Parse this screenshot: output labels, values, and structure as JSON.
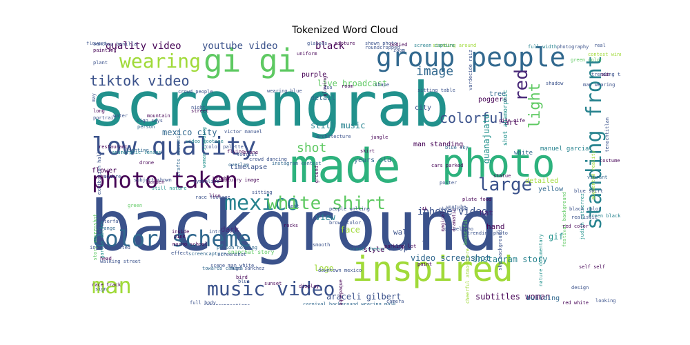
{
  "title": "Tokenized Word Cloud",
  "palette": [
    "#440154",
    "#3b528b",
    "#21918c",
    "#2db27d",
    "#5ec962",
    "#a0da39",
    "#31688e",
    "#26828e",
    "#482878",
    "#1f9e89"
  ],
  "words": [
    {
      "text": "background",
      "size": 100,
      "color": "#3b528b"
    },
    {
      "text": "screengrab",
      "size": 88,
      "color": "#21918c"
    },
    {
      "text": "made",
      "size": 68,
      "color": "#2db27d"
    },
    {
      "text": "photo",
      "size": 56,
      "color": "#2db27d"
    },
    {
      "text": "inspired",
      "size": 50,
      "color": "#a0da39"
    },
    {
      "text": "gi gi",
      "size": 46,
      "color": "#5ec962"
    },
    {
      "text": "group people",
      "size": 38,
      "color": "#31688e"
    },
    {
      "text": "low quality",
      "size": 36,
      "color": "#3b528b"
    },
    {
      "text": "photo taken",
      "size": 32,
      "color": "#440154"
    },
    {
      "text": "color scheme",
      "size": 32,
      "color": "#31688e"
    },
    {
      "text": "man",
      "size": 32,
      "color": "#a0da39"
    },
    {
      "text": "music video",
      "size": 28,
      "color": "#3b528b"
    },
    {
      "text": "standing front",
      "size": 30,
      "color": "#26828e"
    },
    {
      "text": "mexico",
      "size": 30,
      "color": "#26828e"
    },
    {
      "text": "white shirt",
      "size": 26,
      "color": "#5ec962"
    },
    {
      "text": "wearing",
      "size": 28,
      "color": "#a0da39"
    },
    {
      "text": "large",
      "size": 26,
      "color": "#3b528b"
    },
    {
      "text": "light",
      "size": 22,
      "color": "#5ec962"
    },
    {
      "text": "red",
      "size": 26,
      "color": "#482878"
    },
    {
      "text": "colorful",
      "size": 20,
      "color": "#3b528b"
    },
    {
      "text": "tiktok video",
      "size": 20,
      "color": "#3b528b"
    },
    {
      "text": "image",
      "size": 18,
      "color": "#31688e"
    },
    {
      "text": "shot",
      "size": 18,
      "color": "#5ec962"
    },
    {
      "text": "quality video",
      "size": 14,
      "color": "#440154"
    },
    {
      "text": "youtube video",
      "size": 14,
      "color": "#3b528b"
    },
    {
      "text": "black",
      "size": 14,
      "color": "#440154"
    },
    {
      "text": "guanajuato",
      "size": 12,
      "color": "#21918c"
    },
    {
      "text": "iphone video",
      "size": 14,
      "color": "#3b528b"
    },
    {
      "text": "video screenshot",
      "size": 12,
      "color": "#31688e"
    },
    {
      "text": "instagram story",
      "size": 12,
      "color": "#26828e"
    },
    {
      "text": "subtitles woman",
      "size": 12,
      "color": "#440154"
    },
    {
      "text": "araceli gilbert",
      "size": 12,
      "color": "#3b528b"
    },
    {
      "text": "live broadcast",
      "size": 12,
      "color": "#5ec962"
    },
    {
      "text": "still music",
      "size": 12,
      "color": "#26828e"
    },
    {
      "text": "mexico city",
      "size": 12,
      "color": "#31688e"
    },
    {
      "text": "240p",
      "size": 12,
      "color": "#3b528b"
    },
    {
      "text": "face",
      "size": 12,
      "color": "#a0da39"
    },
    {
      "text": "wall",
      "size": 11,
      "color": "#3b528b"
    },
    {
      "text": "dark",
      "size": 11,
      "color": "#482878"
    },
    {
      "text": "view",
      "size": 12,
      "color": "#26828e"
    },
    {
      "text": "logo",
      "size": 12,
      "color": "#a0da39"
    },
    {
      "text": "gif",
      "size": 12,
      "color": "#21918c"
    },
    {
      "text": "hat",
      "size": 11,
      "color": "#482878"
    },
    {
      "text": "hand",
      "size": 11,
      "color": "#440154"
    },
    {
      "text": "art",
      "size": 11,
      "color": "#440154"
    },
    {
      "text": "yellow",
      "size": 10,
      "color": "#31688e"
    },
    {
      "text": "detailed",
      "size": 10,
      "color": "#a0da39"
    },
    {
      "text": "building",
      "size": 10,
      "color": "#31688e"
    },
    {
      "text": "style",
      "size": 10,
      "color": "#440154"
    },
    {
      "text": "years old",
      "size": 10,
      "color": "#31688e"
    },
    {
      "text": "man standing",
      "size": 10,
      "color": "#440154"
    },
    {
      "text": "white",
      "size": 9,
      "color": "#31688e"
    },
    {
      "text": "manuel garcia",
      "size": 9,
      "color": "#26828e"
    },
    {
      "text": "flower",
      "size": 10,
      "color": "#440154"
    },
    {
      "text": "timelapse",
      "size": 10,
      "color": "#3b528b"
    },
    {
      "text": "purple",
      "size": 10,
      "color": "#440154"
    },
    {
      "text": "detail",
      "size": 10,
      "color": "#31688e"
    },
    {
      "text": "city",
      "size": 10,
      "color": "#3b528b"
    },
    {
      "text": "tree",
      "size": 10,
      "color": "#31688e"
    },
    {
      "text": "poggers",
      "size": 10,
      "color": "#440154"
    },
    {
      "text": "shot anamorphic",
      "size": 9,
      "color": "#21918c"
    },
    {
      "text": "crowd cheers",
      "size": 7,
      "color": "#26828e"
    },
    {
      "text": "snapchat story",
      "size": 8,
      "color": "#5ec962"
    },
    {
      "text": "gife gife",
      "size": 7,
      "color": "#440154"
    },
    {
      "text": "victor manuel",
      "size": 7,
      "color": "#3b528b"
    },
    {
      "text": "crafts souvenirs",
      "size": 7,
      "color": "#31688e"
    },
    {
      "text": "video footage",
      "size": 7,
      "color": "#26828e"
    },
    {
      "text": "anamorphic lenses",
      "size": 7,
      "color": "#26828e"
    },
    {
      "text": "color palette",
      "size": 7,
      "color": "#3b528b"
    },
    {
      "text": "still nature",
      "size": 7,
      "color": "#21918c"
    },
    {
      "text": "blurry image",
      "size": 7,
      "color": "#440154"
    },
    {
      "text": "screenshot",
      "size": 7,
      "color": "#3b528b"
    },
    {
      "text": "overlay",
      "size": 7,
      "color": "#31688e"
    },
    {
      "text": "symbolize",
      "size": 7,
      "color": "#3b528b"
    },
    {
      "text": "woman standing",
      "size": 7,
      "color": "#21918c"
    },
    {
      "text": "sitting table",
      "size": 7,
      "color": "#3b528b"
    },
    {
      "text": "cars parked",
      "size": 7,
      "color": "#440154"
    },
    {
      "text": "blue sky",
      "size": 7,
      "color": "#31688e"
    },
    {
      "text": "man wearing",
      "size": 7,
      "color": "#3b528b"
    },
    {
      "text": "green color",
      "size": 7,
      "color": "#5ec962"
    },
    {
      "text": "contest winner",
      "size": 7,
      "color": "#a0da39"
    },
    {
      "text": "full width",
      "size": 7,
      "color": "#26828e"
    },
    {
      "text": "photography",
      "size": 7,
      "color": "#3b528b"
    },
    {
      "text": "standing around",
      "size": 7,
      "color": "#a0da39"
    },
    {
      "text": "screen capture",
      "size": 7,
      "color": "#26828e"
    },
    {
      "text": "trending tiktok",
      "size": 7,
      "color": "#3b528b"
    },
    {
      "text": "festival background",
      "size": 7,
      "color": "#5ec962"
    },
    {
      "text": "augmented reality",
      "size": 7,
      "color": "#a0da39"
    },
    {
      "text": "judith gutierrez",
      "size": 7,
      "color": "#21918c"
    },
    {
      "text": "tenochtitlan",
      "size": 7,
      "color": "#3b528b"
    },
    {
      "text": "costume",
      "size": 7,
      "color": "#440154"
    },
    {
      "text": "vibrant",
      "size": 7,
      "color": "#31688e"
    },
    {
      "text": "blue shirt",
      "size": 7,
      "color": "#3b528b"
    },
    {
      "text": "white background",
      "size": 7,
      "color": "#5ec962"
    },
    {
      "text": "green black",
      "size": 7,
      "color": "#26828e"
    },
    {
      "text": "story screenshot",
      "size": 7,
      "color": "#5ec962"
    },
    {
      "text": "garcia valdes",
      "size": 7,
      "color": "#21918c"
    },
    {
      "text": "walking street",
      "size": 7,
      "color": "#3b528b"
    },
    {
      "text": "race track",
      "size": 7,
      "color": "#440154"
    },
    {
      "text": "sign",
      "size": 7,
      "color": "#3b528b"
    },
    {
      "text": "head",
      "size": 7,
      "color": "#440154"
    },
    {
      "text": "orange",
      "size": 7,
      "color": "#31688e"
    },
    {
      "text": "waterfall",
      "size": 7,
      "color": "#3b528b"
    },
    {
      "text": "church",
      "size": 7,
      "color": "#440154"
    },
    {
      "text": "green",
      "size": 7,
      "color": "#5ec962"
    },
    {
      "text": "lighting",
      "size": 7,
      "color": "#31688e"
    },
    {
      "text": "restaurant",
      "size": 7,
      "color": "#440154"
    },
    {
      "text": "exhibition hall",
      "size": 7,
      "color": "#3b528b"
    },
    {
      "text": "portrait",
      "size": 7,
      "color": "#3b528b"
    },
    {
      "text": "mountain",
      "size": 7,
      "color": "#440154"
    },
    {
      "text": "night",
      "size": 7,
      "color": "#3b528b"
    },
    {
      "text": "street",
      "size": 7,
      "color": "#440154"
    },
    {
      "text": "sign says",
      "size": 7,
      "color": "#3b528b"
    },
    {
      "text": "person",
      "size": 7,
      "color": "#31688e"
    },
    {
      "text": "water",
      "size": 7,
      "color": "#3b528b"
    },
    {
      "text": "long",
      "size": 7,
      "color": "#440154"
    },
    {
      "text": "plant",
      "size": 7,
      "color": "#3b528b"
    },
    {
      "text": "painting",
      "size": 7,
      "color": "#440154"
    },
    {
      "text": "sanchez bonilla",
      "size": 7,
      "color": "#3b528b"
    },
    {
      "text": "interconnections",
      "size": 7,
      "color": "#3b528b"
    },
    {
      "text": "man woman",
      "size": 7,
      "color": "#3b528b"
    },
    {
      "text": "carnival background wearing mask",
      "size": 7,
      "color": "#31688e"
    },
    {
      "text": "tlaquepaque",
      "size": 7,
      "color": "#440154"
    },
    {
      "text": "camera",
      "size": 7,
      "color": "#3b528b"
    },
    {
      "text": "self self",
      "size": 7,
      "color": "#440154"
    },
    {
      "text": "design",
      "size": 7,
      "color": "#3b528b"
    },
    {
      "text": "red white",
      "size": 7,
      "color": "#440154"
    },
    {
      "text": "looking",
      "size": 7,
      "color": "#3b528b"
    },
    {
      "text": "screencapture",
      "size": 7,
      "color": "#31688e"
    },
    {
      "text": "hugo sanchez",
      "size": 7,
      "color": "#3b528b"
    },
    {
      "text": "bird",
      "size": 7,
      "color": "#440154"
    },
    {
      "text": "pink",
      "size": 7,
      "color": "#440154"
    },
    {
      "text": "effect",
      "size": 7,
      "color": "#3b528b"
    },
    {
      "text": "inside",
      "size": 7,
      "color": "#440154"
    },
    {
      "text": "intricate",
      "size": 7,
      "color": "#3b528b"
    },
    {
      "text": "person holding",
      "size": 7,
      "color": "#31688e"
    },
    {
      "text": "smooth",
      "size": 7,
      "color": "#3b528b"
    },
    {
      "text": "4k",
      "size": 7,
      "color": "#440154"
    },
    {
      "text": "photograph",
      "size": 7,
      "color": "#3b528b"
    },
    {
      "text": "magical",
      "size": 7,
      "color": "#440154"
    },
    {
      "text": "beautiful",
      "size": 7,
      "color": "#5ec962"
    },
    {
      "text": "trending photo",
      "size": 7,
      "color": "#3b528b"
    },
    {
      "text": "sky background",
      "size": 7,
      "color": "#3b528b"
    },
    {
      "text": "nature documentary",
      "size": 7,
      "color": "#21918c"
    },
    {
      "text": "cheerful atmosphere",
      "size": 7,
      "color": "#a0da39"
    },
    {
      "text": "dramatic",
      "size": 7,
      "color": "#440154"
    },
    {
      "text": "architecture",
      "size": 7,
      "color": "#3b528b"
    },
    {
      "text": "people walking",
      "size": 7,
      "color": "#3b528b"
    },
    {
      "text": "crowd people",
      "size": 7,
      "color": "#3b528b"
    },
    {
      "text": "wearing blue",
      "size": 7,
      "color": "#3b528b"
    },
    {
      "text": "glowing",
      "size": 7,
      "color": "#440154"
    },
    {
      "text": "shape",
      "size": 7,
      "color": "#3b528b"
    },
    {
      "text": "iso",
      "size": 7,
      "color": "#3b528b"
    },
    {
      "text": "room",
      "size": 7,
      "color": "#440154"
    },
    {
      "text": "picture",
      "size": 7,
      "color": "#440154"
    },
    {
      "text": "glasses",
      "size": 7,
      "color": "#3b528b"
    },
    {
      "text": "uniform",
      "size": 7,
      "color": "#440154"
    },
    {
      "text": "shadow",
      "size": 7,
      "color": "#3b528b"
    },
    {
      "text": "sun",
      "size": 7,
      "color": "#440154"
    },
    {
      "text": "real",
      "size": 7,
      "color": "#3b528b"
    },
    {
      "text": "realistic",
      "size": 7,
      "color": "#3b528b"
    },
    {
      "text": "red color",
      "size": 7,
      "color": "#440154"
    },
    {
      "text": "black color",
      "size": 7,
      "color": "#3b528b"
    },
    {
      "text": "brown color",
      "size": 7,
      "color": "#3b528b"
    },
    {
      "text": "drone",
      "size": 7,
      "color": "#440154"
    },
    {
      "text": "subject shown",
      "size": 7,
      "color": "#3b528b"
    },
    {
      "text": "garden",
      "size": 7,
      "color": "#440154"
    },
    {
      "text": "square",
      "size": 7,
      "color": "#3b528b"
    },
    {
      "text": "flying",
      "size": 7,
      "color": "#440154"
    },
    {
      "text": "crowd dancing",
      "size": 7,
      "color": "#3b528b"
    },
    {
      "text": "instagram contest",
      "size": 7,
      "color": "#31688e"
    },
    {
      "text": "ground",
      "size": 7,
      "color": "#440154"
    },
    {
      "text": "sitting",
      "size": 7,
      "color": "#3b528b"
    },
    {
      "text": "bright",
      "size": 7,
      "color": "#440154"
    },
    {
      "text": "scene man white",
      "size": 7,
      "color": "#3b528b"
    },
    {
      "text": "towards camera",
      "size": 7,
      "color": "#31688e"
    },
    {
      "text": "blue",
      "size": 7,
      "color": "#3b528b"
    },
    {
      "text": "downtown mexico",
      "size": 7,
      "color": "#3b528b"
    },
    {
      "text": "display",
      "size": 7,
      "color": "#440154"
    },
    {
      "text": "sunset",
      "size": 7,
      "color": "#440154"
    },
    {
      "text": "skirt",
      "size": 7,
      "color": "#440154"
    },
    {
      "text": "shown photo",
      "size": 7,
      "color": "#3b528b"
    },
    {
      "text": "roundcropped",
      "size": 7,
      "color": "#3b528b"
    },
    {
      "text": "bodied",
      "size": 7,
      "color": "#440154"
    },
    {
      "text": "zoom",
      "size": 7,
      "color": "#3b528b"
    },
    {
      "text": "jungle",
      "size": 7,
      "color": "#440154"
    },
    {
      "text": "poster",
      "size": 7,
      "color": "#3b528b"
    },
    {
      "text": "statue",
      "size": 7,
      "color": "#440154"
    },
    {
      "text": "lens",
      "size": 7,
      "color": "#3b528b"
    },
    {
      "text": "paint",
      "size": 7,
      "color": "#440154"
    },
    {
      "text": "full body",
      "size": 7,
      "color": "#3b528b"
    },
    {
      "text": "vardecide ruiz",
      "size": 7,
      "color": "#3b528b"
    },
    {
      "text": "parking lot",
      "size": 7,
      "color": "#440154"
    },
    {
      "text": "youtube",
      "size": 7,
      "color": "#3b528b"
    },
    {
      "text": "de welacho",
      "size": 7,
      "color": "#3b528b"
    },
    {
      "text": "plate food",
      "size": 7,
      "color": "#440154"
    },
    {
      "text": "may",
      "size": 7,
      "color": "#3b528b"
    },
    {
      "text": "interconnected",
      "size": 7,
      "color": "#3b528b"
    },
    {
      "text": "mucho school",
      "size": 7,
      "color": "#440154"
    },
    {
      "text": "race footage",
      "size": 7,
      "color": "#3b528b"
    },
    {
      "text": "rocks",
      "size": 7,
      "color": "#440154"
    },
    {
      "text": "soft",
      "size": 7,
      "color": "#3b528b"
    },
    {
      "text": "lion",
      "size": 7,
      "color": "#440154"
    },
    {
      "text": "tourist",
      "size": 7,
      "color": "#3b528b"
    },
    {
      "text": "stone",
      "size": 7,
      "color": "#440154"
    },
    {
      "text": "flowers",
      "size": 7,
      "color": "#3b528b"
    }
  ]
}
